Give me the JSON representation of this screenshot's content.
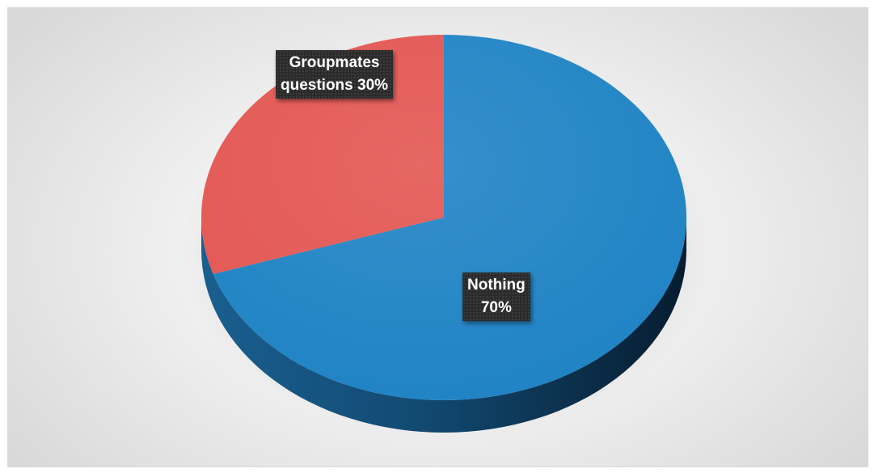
{
  "chart_data": {
    "type": "pie",
    "style": "3d",
    "title": "",
    "slices": [
      {
        "label": "Nothing",
        "value": 70,
        "display": "70%",
        "color": "#1f83c4",
        "side_color": "#12537f"
      },
      {
        "label": "Groupmates questions",
        "value": 30,
        "display": "30%",
        "color": "#e35652",
        "side_color": "#a33a37"
      }
    ],
    "labels": [
      {
        "line1": "Nothing",
        "line2": "70%"
      },
      {
        "line1": "Groupmates",
        "line2": "questions 30%"
      }
    ],
    "legend": "none"
  }
}
